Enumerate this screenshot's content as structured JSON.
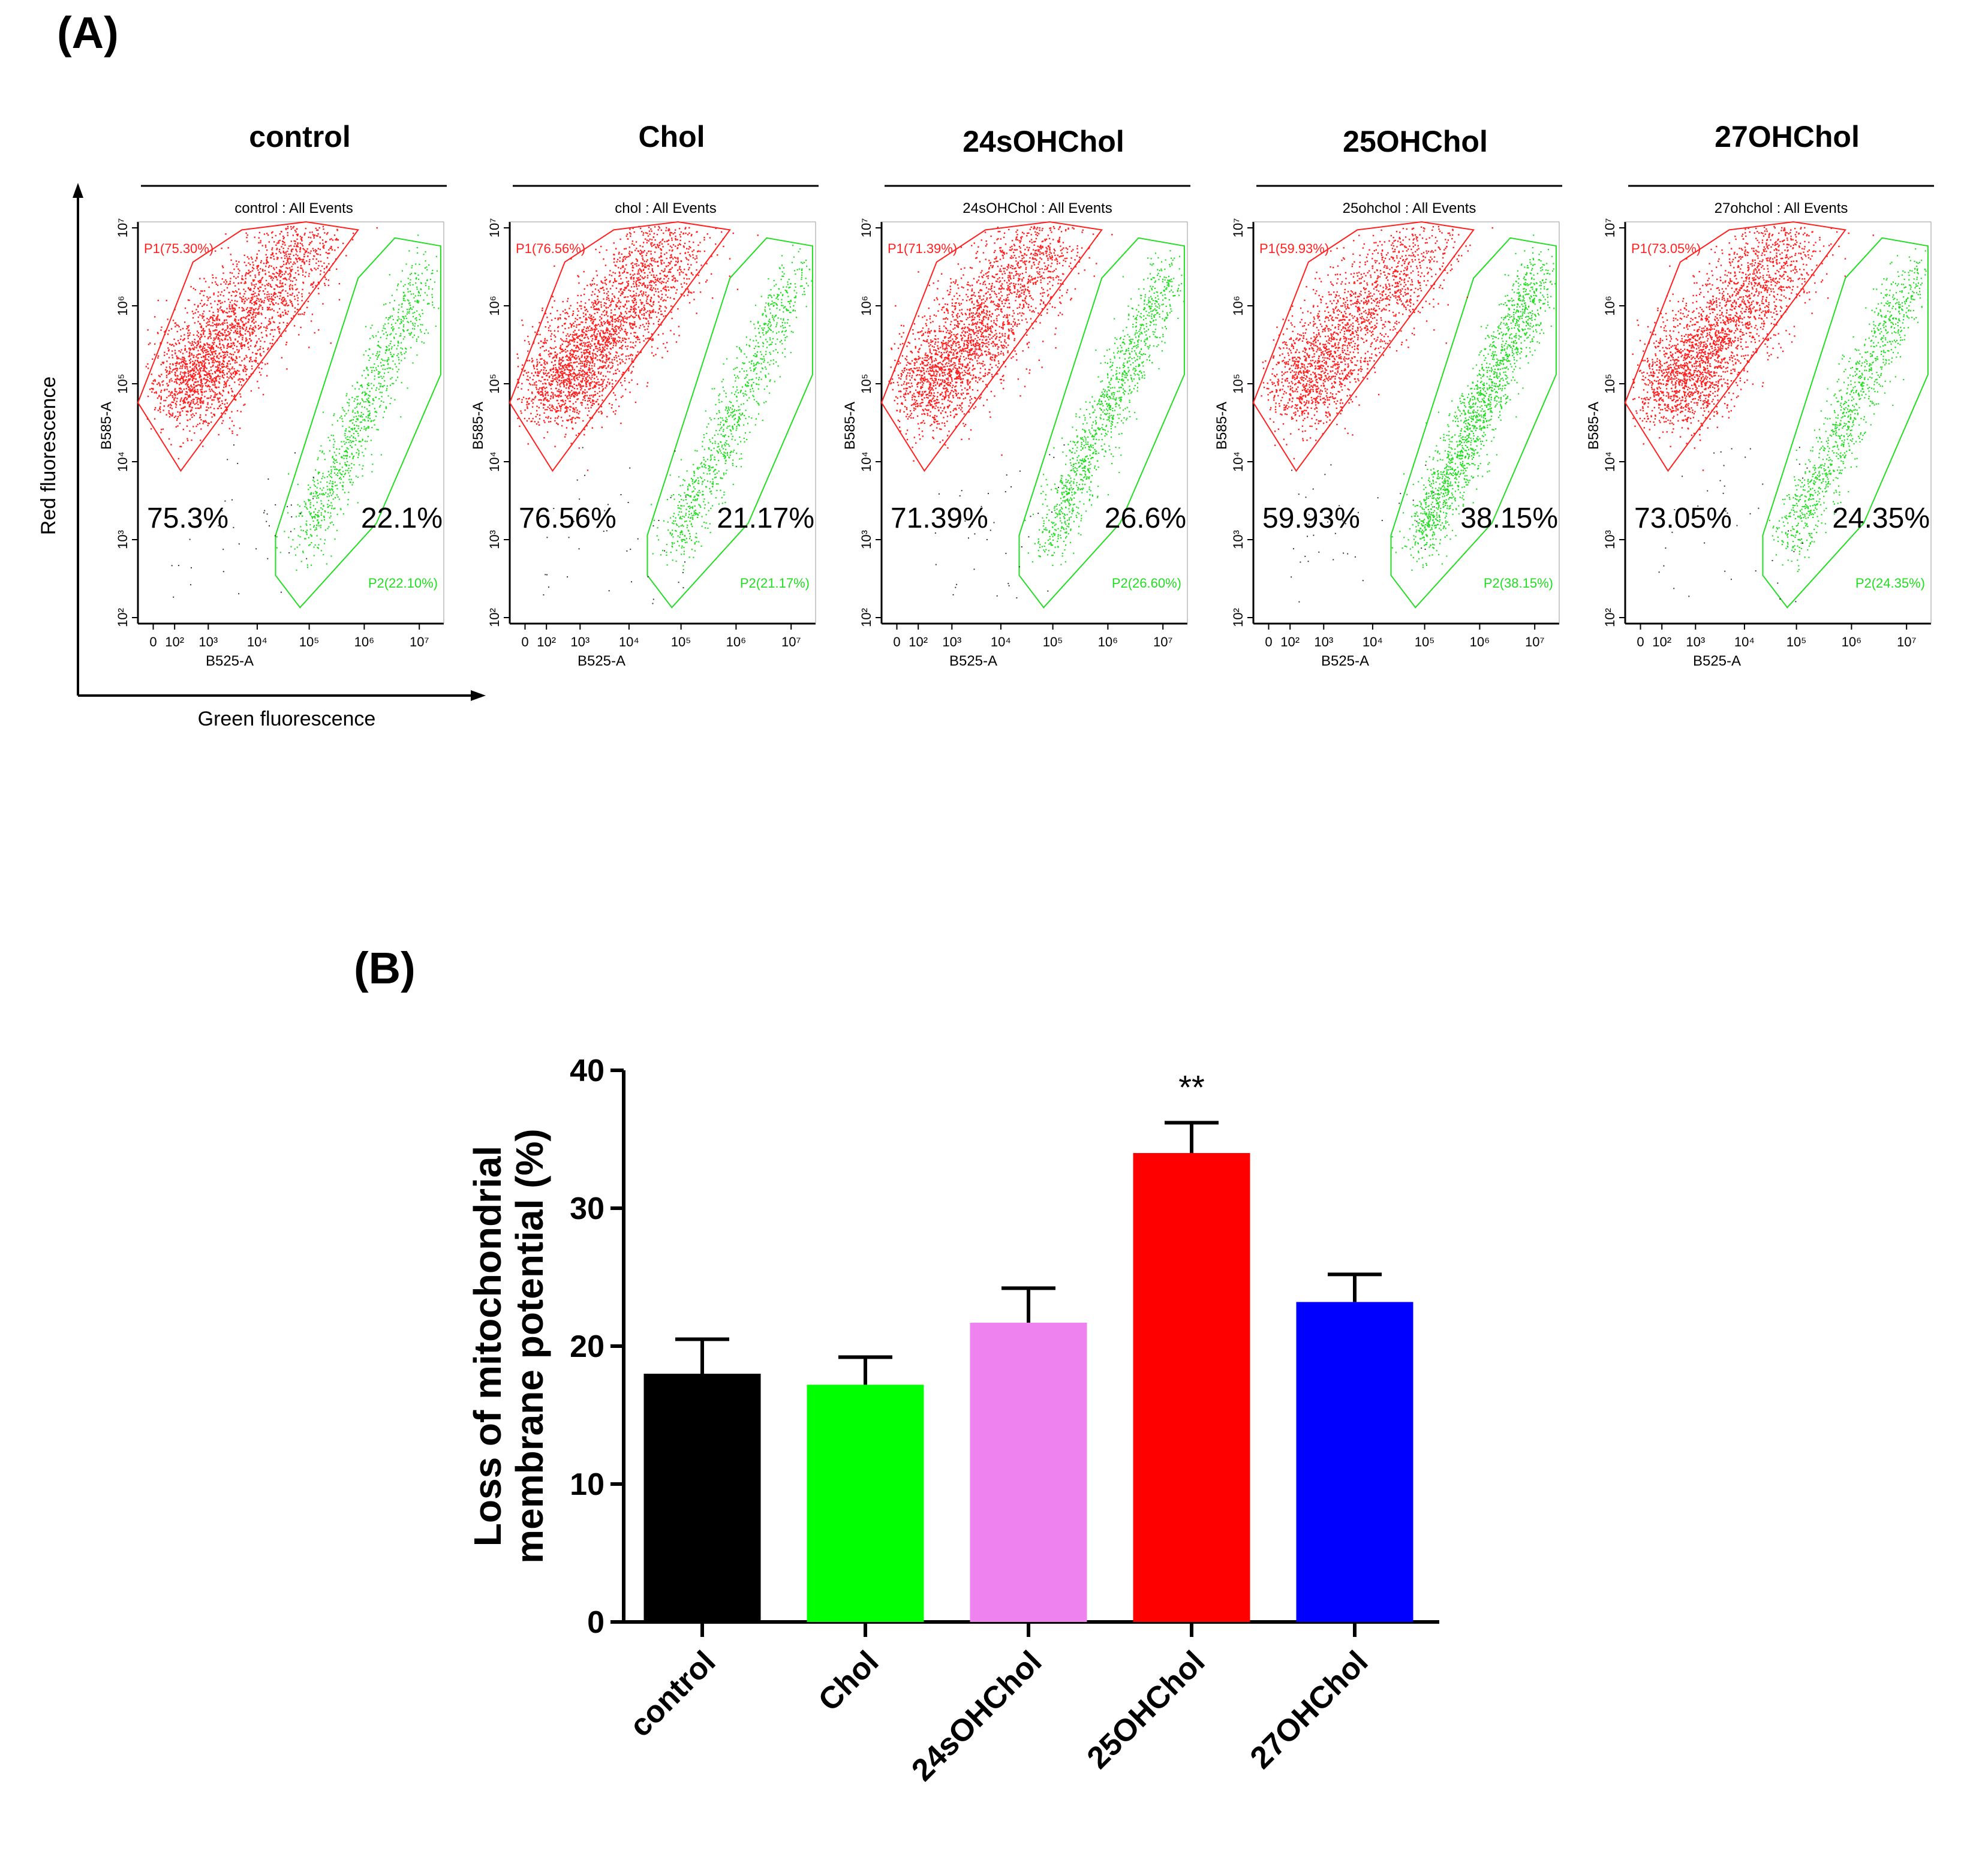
{
  "panel_a": {
    "label": "(A)",
    "y_axis_caption": "Red fluorescence",
    "x_axis_caption": "Green fluorescence",
    "x_axis_name": "B525-A",
    "y_axis_name": "B585-A",
    "x_ticks": [
      "0",
      "10²",
      "10³",
      "10⁴",
      "10⁵",
      "10⁶",
      "10⁷"
    ],
    "y_ticks": [
      "10²",
      "10³",
      "10⁴",
      "10⁵",
      "10⁶",
      "10⁷"
    ],
    "colors": {
      "p1": "#ff2020",
      "p2": "#22dd22"
    },
    "plots": [
      {
        "title": "control",
        "events_label": "control : All Events",
        "p1_gate": "P1(75.30%)",
        "p2_gate": "P2(22.10%)",
        "p1_pct": "75.3%",
        "p2_pct": "22.1%",
        "p1_value": 75.3,
        "p2_value": 22.1
      },
      {
        "title": "Chol",
        "events_label": "chol : All Events",
        "p1_gate": "P1(76.56%)",
        "p2_gate": "P2(21.17%)",
        "p1_pct": "76.56%",
        "p2_pct": "21.17%",
        "p1_value": 76.56,
        "p2_value": 21.17
      },
      {
        "title": "24sOHChol",
        "events_label": "24sOHChol : All Events",
        "p1_gate": "P1(71.39%)",
        "p2_gate": "P2(26.60%)",
        "p1_pct": "71.39%",
        "p2_pct": "26.6%",
        "p1_value": 71.39,
        "p2_value": 26.6
      },
      {
        "title": "25OHChol",
        "events_label": "25ohchol : All Events",
        "p1_gate": "P1(59.93%)",
        "p2_gate": "P2(38.15%)",
        "p1_pct": "59.93%",
        "p2_pct": "38.15%",
        "p1_value": 59.93,
        "p2_value": 38.15
      },
      {
        "title": "27OHChol",
        "events_label": "27ohchol : All Events",
        "p1_gate": "P1(73.05%)",
        "p2_gate": "P2(24.35%)",
        "p1_pct": "73.05%",
        "p2_pct": "24.35%",
        "p1_value": 73.05,
        "p2_value": 24.35
      }
    ]
  },
  "panel_b": {
    "label": "(B)",
    "annotation": "**"
  },
  "chart_data": [
    {
      "type": "scatter",
      "description_key": "flow cytometry dot plots (JC-1 style red vs green fluorescence)",
      "xlabel": "B525-A",
      "ylabel": "B585-A",
      "xscale": "log",
      "yscale": "log",
      "xlim": [
        1,
        10000000
      ],
      "ylim": [
        100,
        10000000
      ],
      "samples": [
        "control",
        "Chol",
        "24sOHChol",
        "25OHChol",
        "27OHChol"
      ],
      "series": [
        {
          "name": "P1",
          "values": [
            75.3,
            76.56,
            71.39,
            59.93,
            73.05
          ]
        },
        {
          "name": "P2",
          "values": [
            22.1,
            21.17,
            26.6,
            38.15,
            24.35
          ]
        }
      ]
    },
    {
      "type": "bar",
      "categories": [
        "control",
        "Chol",
        "24sOHChol",
        "25OHChol",
        "27OHChol"
      ],
      "values": [
        18,
        17.2,
        21.7,
        34,
        23.2
      ],
      "errors": [
        2.5,
        2,
        2.5,
        2.2,
        2
      ],
      "colors": [
        "#000000",
        "#00ff00",
        "#ee82ee",
        "#ff0000",
        "#0000ff"
      ],
      "ylabel_lines": [
        "Loss of mitochondrial",
        "membrane potential  (%)"
      ],
      "yticks": [
        "0",
        "10",
        "20",
        "30",
        "40"
      ],
      "ylim": [
        0,
        40
      ],
      "significance": [
        {
          "category": "25OHChol",
          "label": "**"
        }
      ]
    }
  ]
}
